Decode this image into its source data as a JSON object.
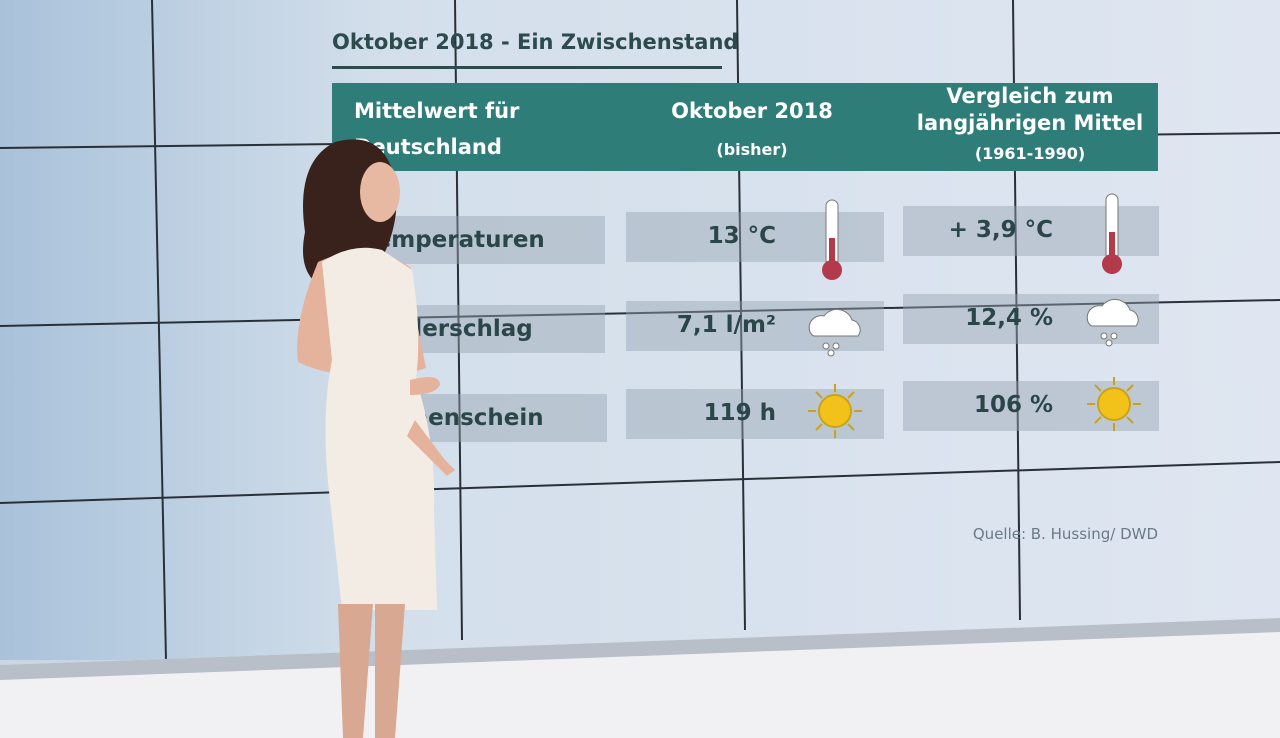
{
  "title": "Oktober 2018 - Ein Zwischenstand",
  "table": {
    "header": [
      {
        "label": "Mittelwert für Deutschland"
      },
      {
        "label": "Oktober 2018",
        "sublabel": "(bisher)"
      },
      {
        "label": "Vergleich zum langjährigen Mittel",
        "sublabel": "(1961-1990)"
      }
    ],
    "rows": [
      [
        "Temperaturen",
        "13 °C",
        "+ 3,9 °C"
      ],
      [
        "Niederschlag",
        "7,1 l/m²",
        "12,4 %"
      ],
      [
        "Sonnenschein",
        "119 h",
        "106 %"
      ]
    ]
  },
  "source": "Quelle: B. Hussing/ DWD"
}
